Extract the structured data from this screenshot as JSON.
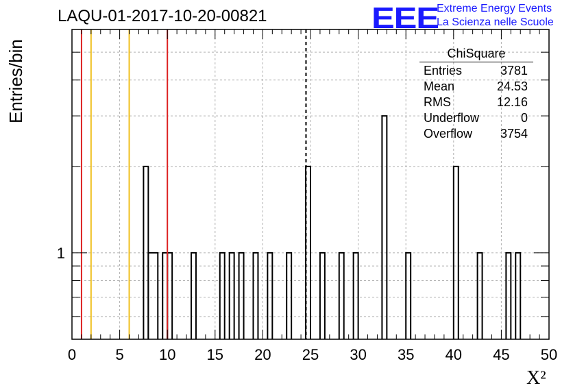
{
  "chart_data": {
    "type": "bar",
    "title": "LAQU-01-2017-10-20-00821",
    "xlabel": "X²",
    "ylabel": "Entries/bin",
    "xlim": [
      0,
      50
    ],
    "ylim": [
      0.5,
      6
    ],
    "yscale": "log",
    "grid": true,
    "x_ticks": [
      "0",
      "5",
      "10",
      "15",
      "20",
      "25",
      "30",
      "35",
      "40",
      "45",
      "50"
    ],
    "y_tick_labels": [
      "1"
    ],
    "bins": [
      {
        "x0": 7.5,
        "x1": 8.0,
        "value": 2
      },
      {
        "x0": 8.0,
        "x1": 9.0,
        "value": 1
      },
      {
        "x0": 9.5,
        "x1": 10.0,
        "value": 1
      },
      {
        "x0": 10.0,
        "x1": 10.5,
        "value": 1
      },
      {
        "x0": 12.5,
        "x1": 13.0,
        "value": 1
      },
      {
        "x0": 15.5,
        "x1": 16.0,
        "value": 1
      },
      {
        "x0": 16.5,
        "x1": 17.0,
        "value": 1
      },
      {
        "x0": 17.5,
        "x1": 18.0,
        "value": 1
      },
      {
        "x0": 19.0,
        "x1": 19.5,
        "value": 1
      },
      {
        "x0": 20.5,
        "x1": 21.0,
        "value": 1
      },
      {
        "x0": 22.5,
        "x1": 23.0,
        "value": 1
      },
      {
        "x0": 24.5,
        "x1": 25.0,
        "value": 2
      },
      {
        "x0": 26.0,
        "x1": 26.5,
        "value": 1
      },
      {
        "x0": 28.0,
        "x1": 28.5,
        "value": 1
      },
      {
        "x0": 29.5,
        "x1": 30.0,
        "value": 1
      },
      {
        "x0": 32.5,
        "x1": 33.0,
        "value": 3
      },
      {
        "x0": 35.0,
        "x1": 35.5,
        "value": 1
      },
      {
        "x0": 40.0,
        "x1": 40.5,
        "value": 2
      },
      {
        "x0": 42.5,
        "x1": 43.0,
        "value": 1
      },
      {
        "x0": 45.5,
        "x1": 46.0,
        "value": 1
      },
      {
        "x0": 46.5,
        "x1": 47.0,
        "value": 1
      }
    ],
    "reference_lines": [
      {
        "x": 1.0,
        "color": "#dd2222",
        "style": "solid"
      },
      {
        "x": 2.0,
        "color": "#f0c020",
        "style": "solid"
      },
      {
        "x": 6.0,
        "color": "#f0c020",
        "style": "solid"
      },
      {
        "x": 10.0,
        "color": "#dd2222",
        "style": "solid"
      },
      {
        "x": 24.53,
        "color": "#000000",
        "style": "dashed"
      }
    ],
    "stats_box": {
      "title": "ChiSquare",
      "rows": [
        {
          "label": "Entries",
          "value": "3781"
        },
        {
          "label": "Mean",
          "value": "24.53"
        },
        {
          "label": "RMS",
          "value": "12.16"
        },
        {
          "label": "Underflow",
          "value": "0"
        },
        {
          "label": "Overflow",
          "value": "3754"
        }
      ]
    }
  },
  "logo": {
    "mark": "EEE",
    "line1": "Extreme Energy Events",
    "line2": "La Scienza nelle Scuole",
    "color": "#1a1aff"
  }
}
